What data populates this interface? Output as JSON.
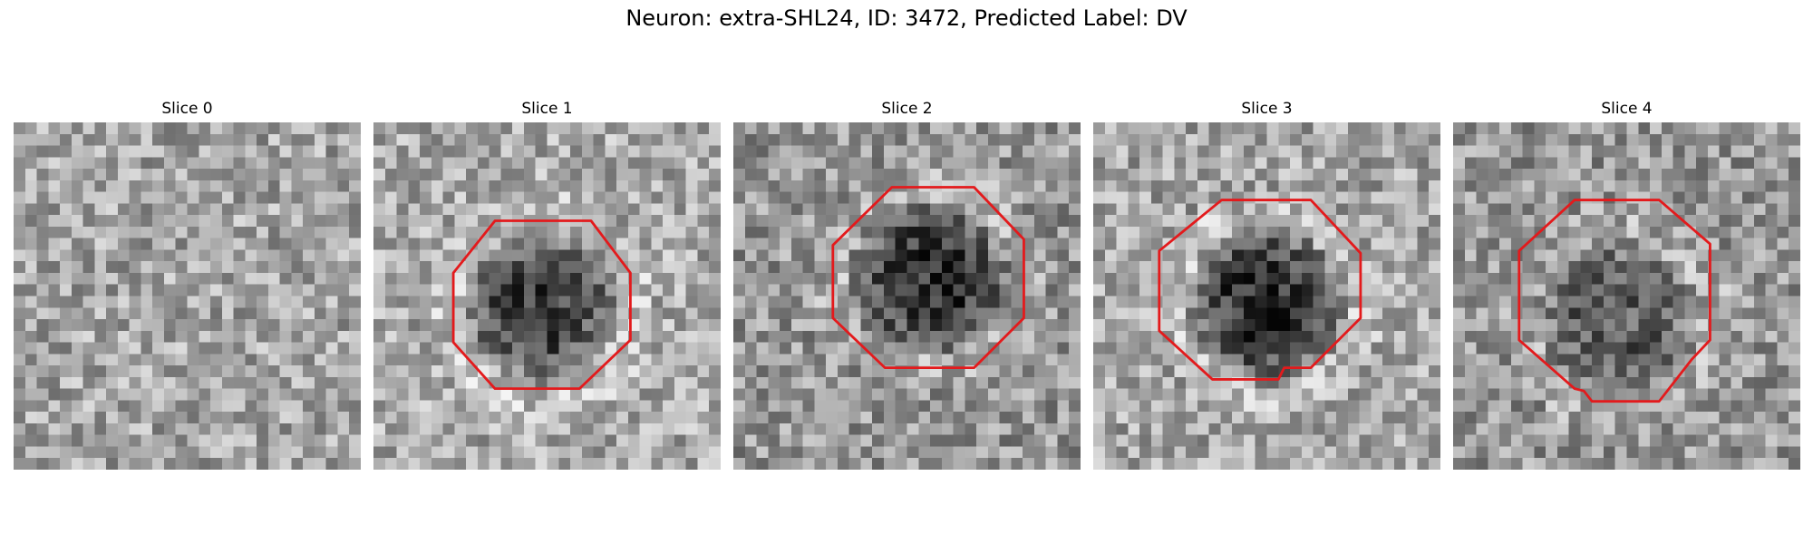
{
  "figure": {
    "title": "Neuron: extra-SHL24, ID: 3472, Predicted Label: DV"
  },
  "contour_color": "#e31a1c",
  "grid_size": 30,
  "panels": [
    {
      "title": "Slice 0",
      "has_roi": false,
      "seed": 101,
      "mean_gray": 165,
      "dark_blob_strength": 0,
      "contour": []
    },
    {
      "title": "Slice 1",
      "has_roi": true,
      "seed": 202,
      "mean_gray": 170,
      "dark_blob_strength": 110,
      "contour": [
        [
          10.5,
          8.5
        ],
        [
          18.8,
          8.5
        ],
        [
          22.2,
          13.0
        ],
        [
          22.2,
          18.8
        ],
        [
          17.8,
          23.0
        ],
        [
          10.5,
          23.0
        ],
        [
          6.9,
          19.0
        ],
        [
          6.9,
          13.0
        ]
      ]
    },
    {
      "title": "Slice 2",
      "has_roi": true,
      "seed": 303,
      "mean_gray": 150,
      "dark_blob_strength": 100,
      "contour": [
        [
          13.7,
          5.6
        ],
        [
          20.8,
          5.6
        ],
        [
          25.1,
          10.1
        ],
        [
          25.1,
          16.9
        ],
        [
          20.8,
          21.2
        ],
        [
          13.1,
          21.2
        ],
        [
          8.6,
          16.9
        ],
        [
          8.6,
          10.6
        ]
      ]
    },
    {
      "title": "Slice 3",
      "has_roi": true,
      "seed": 404,
      "mean_gray": 165,
      "dark_blob_strength": 120,
      "contour": [
        [
          11.1,
          6.7
        ],
        [
          18.8,
          6.7
        ],
        [
          23.1,
          11.3
        ],
        [
          23.1,
          16.9
        ],
        [
          18.8,
          21.2
        ],
        [
          16.5,
          21.2
        ],
        [
          16.0,
          22.2
        ],
        [
          10.3,
          22.2
        ],
        [
          5.7,
          18.0
        ],
        [
          5.7,
          11.1
        ]
      ]
    },
    {
      "title": "Slice 4",
      "has_roi": true,
      "seed": 505,
      "mean_gray": 150,
      "dark_blob_strength": 60,
      "contour": [
        [
          10.5,
          6.7
        ],
        [
          17.8,
          6.7
        ],
        [
          22.2,
          10.5
        ],
        [
          22.2,
          18.8
        ],
        [
          20.6,
          20.5
        ],
        [
          17.8,
          24.1
        ],
        [
          12.0,
          24.1
        ],
        [
          11.3,
          23.2
        ],
        [
          10.5,
          23.0
        ],
        [
          5.7,
          18.8
        ],
        [
          5.7,
          11.1
        ]
      ]
    }
  ]
}
